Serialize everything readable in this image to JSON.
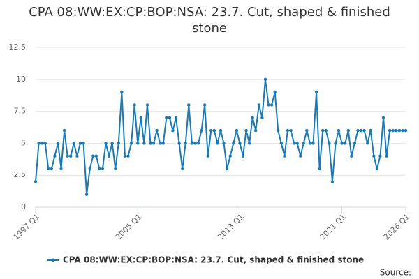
{
  "chart_data": {
    "type": "line",
    "title": "CPA 08:WW:EX:CP:BOP:NSA: 23.7. Cut, shaped & finished stone",
    "categories": [
      "1997 Q1",
      null,
      null,
      null,
      null,
      null,
      null,
      null,
      null,
      null,
      null,
      null,
      null,
      null,
      null,
      null,
      null,
      null,
      null,
      null,
      null,
      null,
      null,
      null,
      null,
      null,
      null,
      null,
      null,
      null,
      null,
      null,
      "2005 Q1",
      null,
      null,
      null,
      null,
      null,
      null,
      null,
      null,
      null,
      null,
      null,
      null,
      null,
      null,
      null,
      null,
      null,
      null,
      null,
      null,
      null,
      null,
      null,
      null,
      null,
      null,
      null,
      null,
      null,
      null,
      null,
      "2013 Q1",
      null,
      null,
      null,
      null,
      null,
      null,
      null,
      null,
      null,
      null,
      null,
      null,
      null,
      null,
      null,
      null,
      null,
      null,
      null,
      null,
      null,
      null,
      null,
      null,
      null,
      null,
      null,
      null,
      null,
      null,
      null,
      "2021 Q1",
      null,
      null,
      null,
      null,
      null,
      null,
      null,
      null,
      null,
      null,
      null,
      null,
      null,
      null,
      null,
      null,
      null,
      null,
      null,
      "2026 Q1"
    ],
    "series": [
      {
        "name": "CPA 08:WW:EX:CP:BOP:NSA: 23.7. Cut, shaped & finished stone",
        "color": "#1a7ab3",
        "values": [
          2,
          5,
          5,
          5,
          3,
          3,
          4,
          5,
          3,
          6,
          4,
          4,
          5,
          4,
          5,
          5,
          1,
          3,
          4,
          4,
          3,
          3,
          5,
          4,
          5,
          3,
          5,
          9,
          4,
          4,
          5,
          8,
          5,
          7,
          5,
          8,
          5,
          5,
          6,
          5,
          5,
          7,
          7,
          6,
          7,
          5,
          3,
          5,
          8,
          5,
          5,
          5,
          6,
          8,
          4,
          6,
          6,
          5,
          6,
          5,
          3,
          4,
          5,
          6,
          5,
          4,
          6,
          5,
          7,
          6,
          8,
          7,
          10,
          8,
          8,
          9,
          6,
          5,
          4,
          6,
          6,
          5,
          5,
          4,
          5,
          6,
          5,
          5,
          9,
          3,
          6,
          6,
          5,
          2,
          5,
          6,
          5,
          5,
          6,
          4,
          5,
          6,
          6,
          6,
          5,
          6,
          4,
          3,
          4,
          7,
          4,
          6,
          6,
          6,
          6,
          6,
          6
        ]
      }
    ],
    "ylim": [
      0,
      12.5
    ],
    "yticks": [
      0,
      2.5,
      5,
      7.5,
      10,
      12.5
    ],
    "grid": true,
    "legend": "bottom",
    "source": "Source:"
  }
}
